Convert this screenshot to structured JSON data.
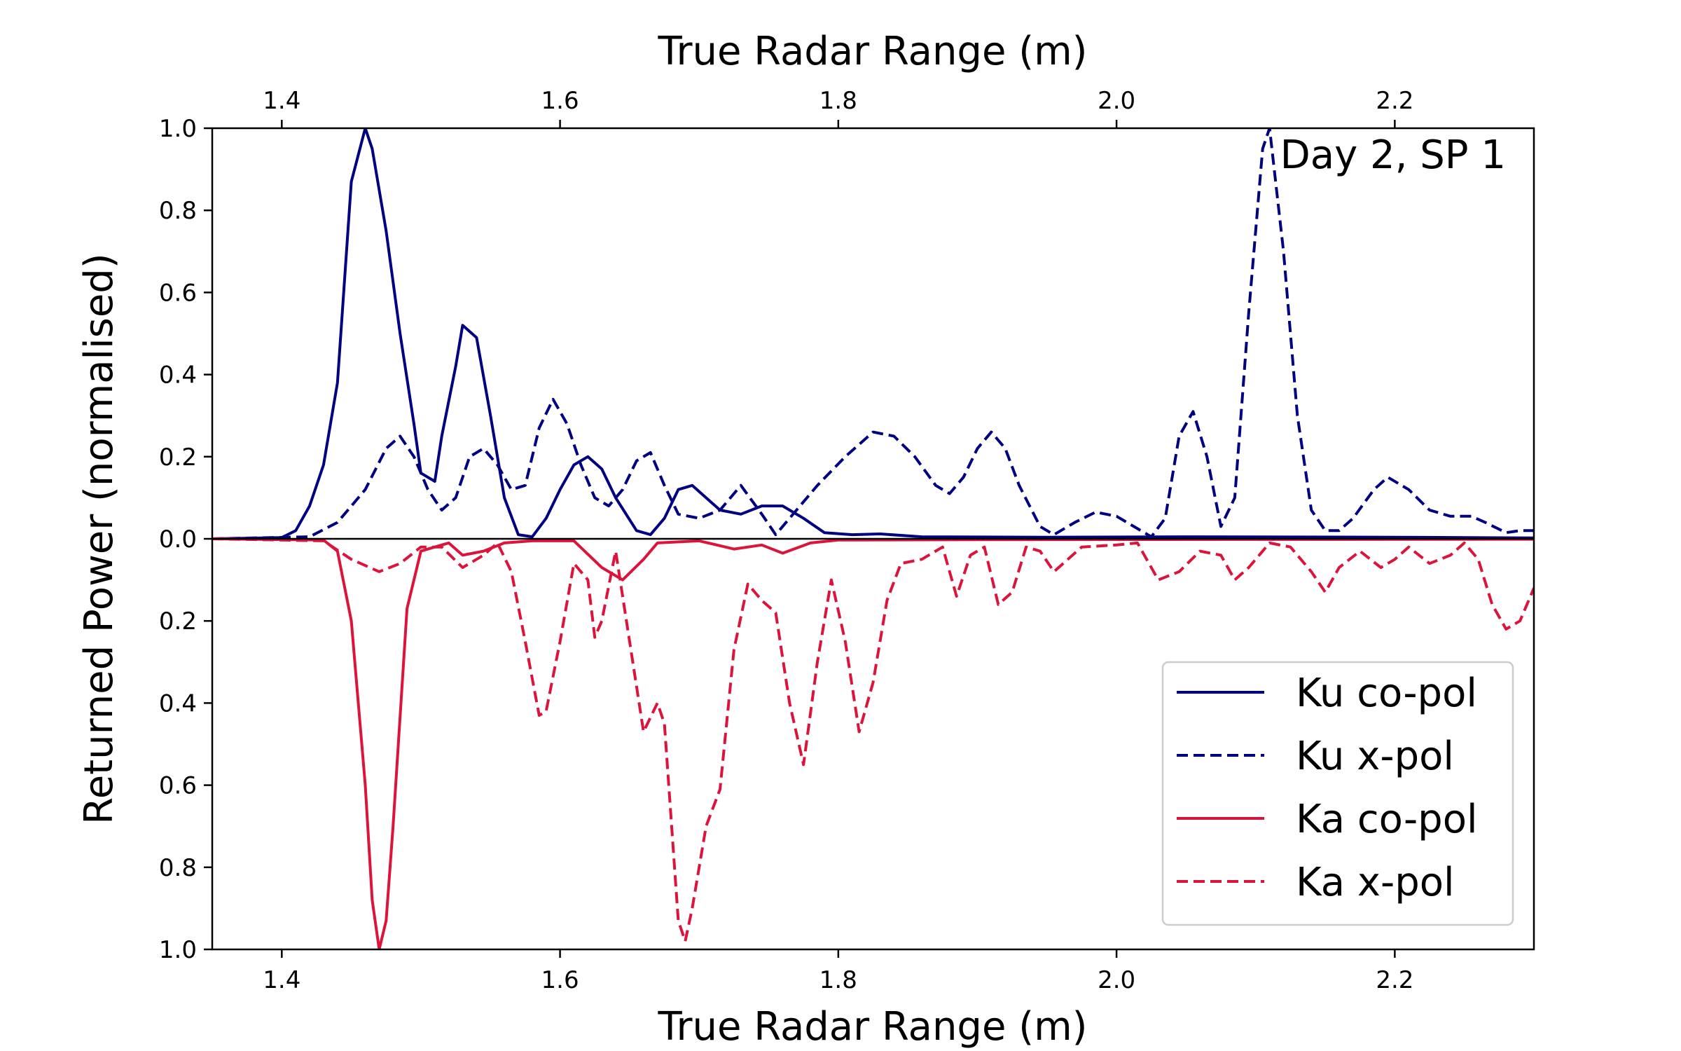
{
  "chart_data": {
    "type": "line",
    "xlabel_top": "True Radar Range (m)",
    "xlabel_bottom": "True Radar Range (m)",
    "ylabel": "Returned Power (normalised)",
    "annotation": "Day 2, SP 1",
    "xlim": [
      1.35,
      2.3
    ],
    "ylim": [
      -1.0,
      1.0
    ],
    "x_ticks": [
      1.4,
      1.6,
      1.8,
      2.0,
      2.2
    ],
    "x_tick_labels": [
      "1.4",
      "1.6",
      "1.8",
      "2.0",
      "2.2"
    ],
    "y_ticks": [
      1.0,
      0.8,
      0.6,
      0.4,
      0.2,
      0.0,
      -0.2,
      -0.4,
      -0.6,
      -0.8,
      -1.0
    ],
    "y_tick_labels": [
      "1.0",
      "0.8",
      "0.6",
      "0.4",
      "0.2",
      "0.0",
      "0.2",
      "0.4",
      "0.6",
      "0.8",
      "1.0"
    ],
    "grid": false,
    "legend_position": "lower-right",
    "series": [
      {
        "name": "Ku co-pol",
        "color": "#000080",
        "dash": "solid",
        "points": [
          [
            1.35,
            0.0
          ],
          [
            1.4,
            0.003
          ],
          [
            1.41,
            0.02
          ],
          [
            1.42,
            0.08
          ],
          [
            1.43,
            0.18
          ],
          [
            1.44,
            0.38
          ],
          [
            1.45,
            0.87
          ],
          [
            1.46,
            1.0
          ],
          [
            1.465,
            0.95
          ],
          [
            1.475,
            0.75
          ],
          [
            1.485,
            0.5
          ],
          [
            1.495,
            0.28
          ],
          [
            1.5,
            0.16
          ],
          [
            1.51,
            0.14
          ],
          [
            1.515,
            0.25
          ],
          [
            1.525,
            0.42
          ],
          [
            1.53,
            0.52
          ],
          [
            1.54,
            0.49
          ],
          [
            1.55,
            0.3
          ],
          [
            1.56,
            0.1
          ],
          [
            1.57,
            0.01
          ],
          [
            1.58,
            0.005
          ],
          [
            1.59,
            0.05
          ],
          [
            1.6,
            0.12
          ],
          [
            1.61,
            0.18
          ],
          [
            1.62,
            0.2
          ],
          [
            1.63,
            0.17
          ],
          [
            1.64,
            0.1
          ],
          [
            1.655,
            0.02
          ],
          [
            1.665,
            0.01
          ],
          [
            1.675,
            0.05
          ],
          [
            1.685,
            0.12
          ],
          [
            1.695,
            0.13
          ],
          [
            1.705,
            0.1
          ],
          [
            1.715,
            0.07
          ],
          [
            1.73,
            0.06
          ],
          [
            1.745,
            0.08
          ],
          [
            1.76,
            0.08
          ],
          [
            1.775,
            0.05
          ],
          [
            1.79,
            0.015
          ],
          [
            1.81,
            0.01
          ],
          [
            1.83,
            0.012
          ],
          [
            1.86,
            0.005
          ],
          [
            1.95,
            0.004
          ],
          [
            2.05,
            0.005
          ],
          [
            2.2,
            0.004
          ],
          [
            2.3,
            0.002
          ]
        ]
      },
      {
        "name": "Ku x-pol",
        "color": "#000080",
        "dash": "dashed",
        "points": [
          [
            1.35,
            0.0
          ],
          [
            1.42,
            0.005
          ],
          [
            1.44,
            0.04
          ],
          [
            1.46,
            0.12
          ],
          [
            1.475,
            0.22
          ],
          [
            1.485,
            0.25
          ],
          [
            1.495,
            0.2
          ],
          [
            1.505,
            0.12
          ],
          [
            1.515,
            0.07
          ],
          [
            1.525,
            0.1
          ],
          [
            1.535,
            0.2
          ],
          [
            1.545,
            0.22
          ],
          [
            1.555,
            0.18
          ],
          [
            1.565,
            0.12
          ],
          [
            1.575,
            0.13
          ],
          [
            1.585,
            0.27
          ],
          [
            1.595,
            0.34
          ],
          [
            1.605,
            0.28
          ],
          [
            1.615,
            0.18
          ],
          [
            1.625,
            0.1
          ],
          [
            1.635,
            0.08
          ],
          [
            1.645,
            0.12
          ],
          [
            1.655,
            0.19
          ],
          [
            1.665,
            0.21
          ],
          [
            1.675,
            0.13
          ],
          [
            1.685,
            0.06
          ],
          [
            1.7,
            0.05
          ],
          [
            1.715,
            0.07
          ],
          [
            1.73,
            0.13
          ],
          [
            1.745,
            0.06
          ],
          [
            1.755,
            0.01
          ],
          [
            1.765,
            0.05
          ],
          [
            1.785,
            0.13
          ],
          [
            1.805,
            0.2
          ],
          [
            1.825,
            0.26
          ],
          [
            1.84,
            0.25
          ],
          [
            1.855,
            0.2
          ],
          [
            1.87,
            0.13
          ],
          [
            1.88,
            0.11
          ],
          [
            1.89,
            0.15
          ],
          [
            1.9,
            0.22
          ],
          [
            1.91,
            0.26
          ],
          [
            1.92,
            0.22
          ],
          [
            1.93,
            0.13
          ],
          [
            1.945,
            0.03
          ],
          [
            1.955,
            0.01
          ],
          [
            1.97,
            0.04
          ],
          [
            1.985,
            0.065
          ],
          [
            2.0,
            0.055
          ],
          [
            2.015,
            0.025
          ],
          [
            2.025,
            0.005
          ],
          [
            2.035,
            0.05
          ],
          [
            2.045,
            0.25
          ],
          [
            2.055,
            0.31
          ],
          [
            2.065,
            0.2
          ],
          [
            2.075,
            0.03
          ],
          [
            2.085,
            0.1
          ],
          [
            2.095,
            0.55
          ],
          [
            2.105,
            0.95
          ],
          [
            2.11,
            1.0
          ],
          [
            2.12,
            0.7
          ],
          [
            2.13,
            0.3
          ],
          [
            2.14,
            0.07
          ],
          [
            2.15,
            0.02
          ],
          [
            2.16,
            0.02
          ],
          [
            2.17,
            0.05
          ],
          [
            2.185,
            0.12
          ],
          [
            2.195,
            0.15
          ],
          [
            2.21,
            0.12
          ],
          [
            2.225,
            0.07
          ],
          [
            2.24,
            0.055
          ],
          [
            2.255,
            0.055
          ],
          [
            2.265,
            0.04
          ],
          [
            2.28,
            0.015
          ],
          [
            2.29,
            0.02
          ],
          [
            2.3,
            0.02
          ]
        ]
      },
      {
        "name": "Ka co-pol",
        "color": "#dc143c",
        "dash": "solid",
        "points": [
          [
            1.35,
            0.0
          ],
          [
            1.43,
            -0.003
          ],
          [
            1.44,
            -0.03
          ],
          [
            1.45,
            -0.2
          ],
          [
            1.46,
            -0.6
          ],
          [
            1.465,
            -0.88
          ],
          [
            1.47,
            -1.0
          ],
          [
            1.475,
            -0.93
          ],
          [
            1.48,
            -0.7
          ],
          [
            1.49,
            -0.17
          ],
          [
            1.5,
            -0.03
          ],
          [
            1.51,
            -0.02
          ],
          [
            1.52,
            -0.01
          ],
          [
            1.53,
            -0.04
          ],
          [
            1.545,
            -0.03
          ],
          [
            1.56,
            -0.01
          ],
          [
            1.58,
            -0.005
          ],
          [
            1.61,
            -0.005
          ],
          [
            1.63,
            -0.07
          ],
          [
            1.645,
            -0.1
          ],
          [
            1.66,
            -0.05
          ],
          [
            1.67,
            -0.01
          ],
          [
            1.7,
            -0.005
          ],
          [
            1.725,
            -0.025
          ],
          [
            1.745,
            -0.015
          ],
          [
            1.76,
            -0.035
          ],
          [
            1.78,
            -0.01
          ],
          [
            1.8,
            -0.003
          ],
          [
            1.9,
            -0.002
          ],
          [
            2.3,
            -0.001
          ]
        ]
      },
      {
        "name": "Ka x-pol",
        "color": "#dc143c",
        "dash": "dashed",
        "points": [
          [
            1.35,
            0.0
          ],
          [
            1.43,
            -0.005
          ],
          [
            1.45,
            -0.05
          ],
          [
            1.47,
            -0.08
          ],
          [
            1.485,
            -0.06
          ],
          [
            1.5,
            -0.02
          ],
          [
            1.515,
            -0.02
          ],
          [
            1.53,
            -0.07
          ],
          [
            1.545,
            -0.04
          ],
          [
            1.555,
            -0.01
          ],
          [
            1.565,
            -0.08
          ],
          [
            1.575,
            -0.25
          ],
          [
            1.585,
            -0.43
          ],
          [
            1.59,
            -0.42
          ],
          [
            1.6,
            -0.25
          ],
          [
            1.61,
            -0.06
          ],
          [
            1.62,
            -0.1
          ],
          [
            1.625,
            -0.24
          ],
          [
            1.63,
            -0.2
          ],
          [
            1.64,
            -0.03
          ],
          [
            1.65,
            -0.25
          ],
          [
            1.66,
            -0.47
          ],
          [
            1.67,
            -0.4
          ],
          [
            1.675,
            -0.45
          ],
          [
            1.685,
            -0.93
          ],
          [
            1.69,
            -0.98
          ],
          [
            1.695,
            -0.9
          ],
          [
            1.705,
            -0.7
          ],
          [
            1.715,
            -0.61
          ],
          [
            1.725,
            -0.27
          ],
          [
            1.735,
            -0.11
          ],
          [
            1.745,
            -0.15
          ],
          [
            1.755,
            -0.18
          ],
          [
            1.765,
            -0.4
          ],
          [
            1.775,
            -0.55
          ],
          [
            1.785,
            -0.3
          ],
          [
            1.795,
            -0.1
          ],
          [
            1.805,
            -0.25
          ],
          [
            1.815,
            -0.47
          ],
          [
            1.825,
            -0.35
          ],
          [
            1.835,
            -0.15
          ],
          [
            1.845,
            -0.06
          ],
          [
            1.86,
            -0.05
          ],
          [
            1.875,
            -0.02
          ],
          [
            1.885,
            -0.14
          ],
          [
            1.895,
            -0.04
          ],
          [
            1.905,
            -0.02
          ],
          [
            1.915,
            -0.16
          ],
          [
            1.925,
            -0.13
          ],
          [
            1.935,
            -0.02
          ],
          [
            1.945,
            -0.03
          ],
          [
            1.955,
            -0.08
          ],
          [
            1.965,
            -0.05
          ],
          [
            1.975,
            -0.02
          ],
          [
            2.0,
            -0.015
          ],
          [
            2.015,
            -0.01
          ],
          [
            2.03,
            -0.1
          ],
          [
            2.045,
            -0.08
          ],
          [
            2.06,
            -0.03
          ],
          [
            2.075,
            -0.04
          ],
          [
            2.085,
            -0.1
          ],
          [
            2.095,
            -0.07
          ],
          [
            2.11,
            -0.01
          ],
          [
            2.125,
            -0.02
          ],
          [
            2.14,
            -0.08
          ],
          [
            2.15,
            -0.13
          ],
          [
            2.16,
            -0.07
          ],
          [
            2.175,
            -0.03
          ],
          [
            2.19,
            -0.07
          ],
          [
            2.2,
            -0.05
          ],
          [
            2.21,
            -0.02
          ],
          [
            2.225,
            -0.06
          ],
          [
            2.24,
            -0.04
          ],
          [
            2.25,
            -0.01
          ],
          [
            2.26,
            -0.05
          ],
          [
            2.27,
            -0.16
          ],
          [
            2.28,
            -0.22
          ],
          [
            2.29,
            -0.2
          ],
          [
            2.3,
            -0.12
          ]
        ]
      }
    ]
  }
}
